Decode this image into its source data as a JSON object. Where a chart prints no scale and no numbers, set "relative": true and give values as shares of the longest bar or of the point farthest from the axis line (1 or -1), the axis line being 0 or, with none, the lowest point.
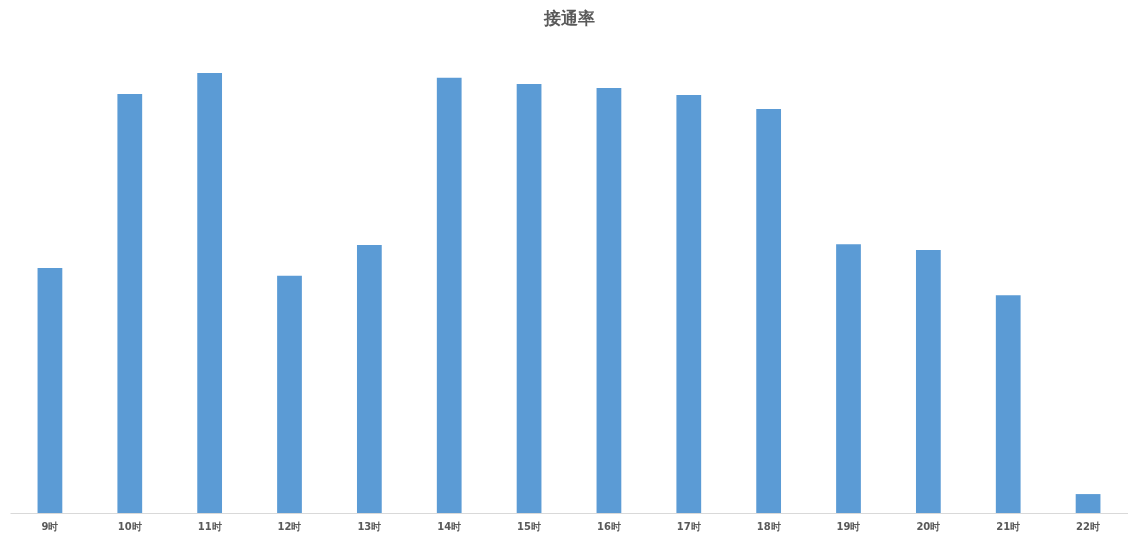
{
  "chart_data": {
    "type": "bar",
    "title": "接通率",
    "relative": true,
    "color": "#5b9bd5",
    "categories": [
      "9时",
      "10时",
      "11时",
      "12时",
      "13时",
      "14时",
      "15时",
      "16时",
      "17时",
      "18时",
      "19时",
      "20时",
      "21时",
      "22时"
    ],
    "values": [
      0.557,
      0.952,
      1,
      0.539,
      0.609,
      0.989,
      0.975,
      0.966,
      0.95,
      0.918,
      0.611,
      0.598,
      0.495,
      0.043
    ]
  }
}
